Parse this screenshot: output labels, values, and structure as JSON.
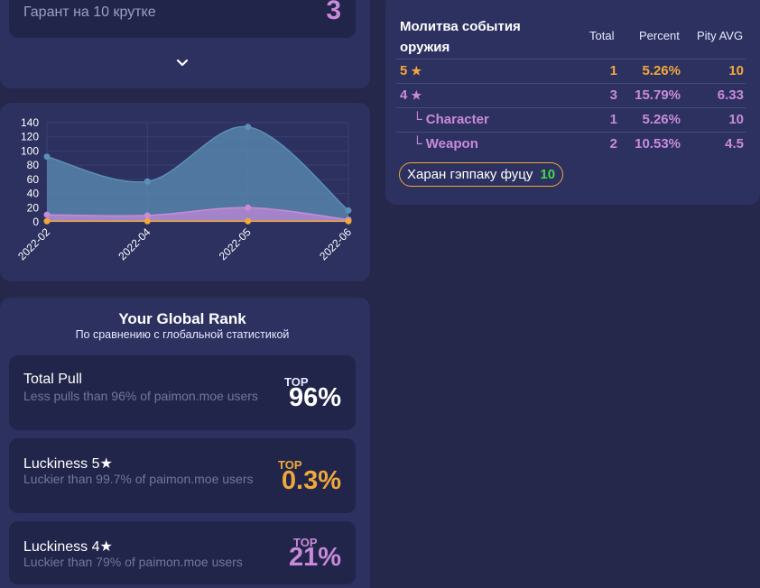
{
  "pity": {
    "label": "Гарант на 10 крутке",
    "value": "3"
  },
  "chart_data": {
    "type": "area",
    "x": [
      "2022-02",
      "2022-04",
      "2022-05",
      "2022-06"
    ],
    "series": [
      {
        "values": [
          92,
          57,
          134,
          16
        ],
        "color": "#5b8fb5"
      },
      {
        "values": [
          10,
          9,
          20,
          3
        ],
        "color": "#c98ad9"
      },
      {
        "values": [
          1,
          1,
          1,
          1
        ],
        "color": "#f0a83a"
      }
    ],
    "yticks": [
      0,
      20,
      40,
      60,
      80,
      100,
      120,
      140
    ],
    "ylim": [
      0,
      140
    ],
    "grid": true
  },
  "rank": {
    "title": "Your Global Rank",
    "subtitle": "По сравнению с глобальной статистикой",
    "items": [
      {
        "name": "Total Pull",
        "desc": "Less pulls than 96% of paimon.moe users",
        "top": "TOP",
        "value": "96%",
        "color": "#ffffff"
      },
      {
        "name": "Luckiness 5★",
        "desc": "Luckier than 99.7% of paimon.moe users",
        "top": "TOP",
        "value": "0.3%",
        "color": "#f0a83a"
      },
      {
        "name": "Luckiness 4★",
        "desc": "Luckier than 79% of paimon.moe users",
        "top": "TOP",
        "value": "21%",
        "color": "#c98ad9"
      }
    ]
  },
  "table": {
    "title": "Молитва события оружия",
    "headers": [
      "Total",
      "Percent",
      "Pity AVG"
    ],
    "rows": [
      {
        "label": "5",
        "star": "★",
        "total": "1",
        "percent": "5.26%",
        "pity": "10",
        "color": "#f0a83a"
      },
      {
        "label": "4",
        "star": "★",
        "total": "3",
        "percent": "15.79%",
        "pity": "6.33",
        "color": "#c98ad9"
      },
      {
        "label": "└ Character",
        "star": "",
        "total": "1",
        "percent": "5.26%",
        "pity": "10",
        "color": "#c98ad9"
      },
      {
        "label": "└ Weapon",
        "star": "",
        "total": "2",
        "percent": "10.53%",
        "pity": "4.5",
        "color": "#c98ad9"
      }
    ],
    "badge": {
      "label": "Харан гэппаку фуцу",
      "value": "10"
    }
  }
}
